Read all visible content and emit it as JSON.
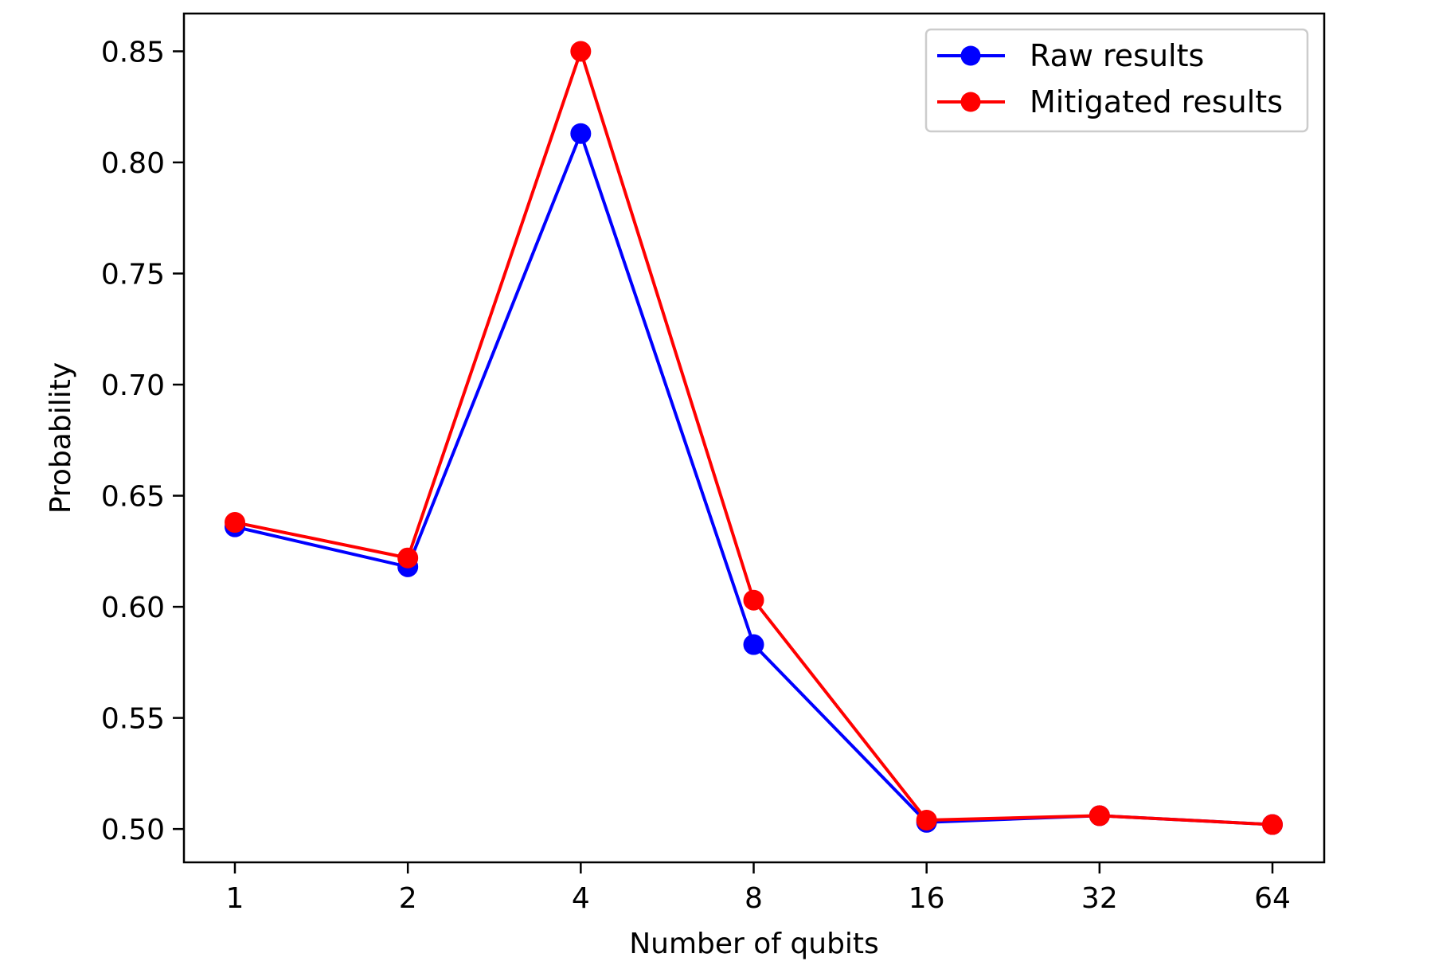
{
  "chart_data": {
    "type": "line",
    "title": "",
    "xlabel": "Number of qubits",
    "ylabel": "Probability",
    "categories": [
      "1",
      "2",
      "4",
      "8",
      "16",
      "32",
      "64"
    ],
    "ylim": [
      0.485,
      0.867
    ],
    "yticks": [
      "0.50",
      "0.55",
      "0.60",
      "0.65",
      "0.70",
      "0.75",
      "0.80",
      "0.85"
    ],
    "grid": false,
    "legend_position": "top-right",
    "series": [
      {
        "name": "Raw results",
        "color": "#0000ff",
        "marker": "circle",
        "values": [
          0.636,
          0.618,
          0.813,
          0.583,
          0.503,
          0.506,
          0.502
        ]
      },
      {
        "name": "Mitigated results",
        "color": "#ff0000",
        "marker": "circle",
        "values": [
          0.638,
          0.622,
          0.85,
          0.603,
          0.504,
          0.506,
          0.502
        ]
      }
    ]
  }
}
